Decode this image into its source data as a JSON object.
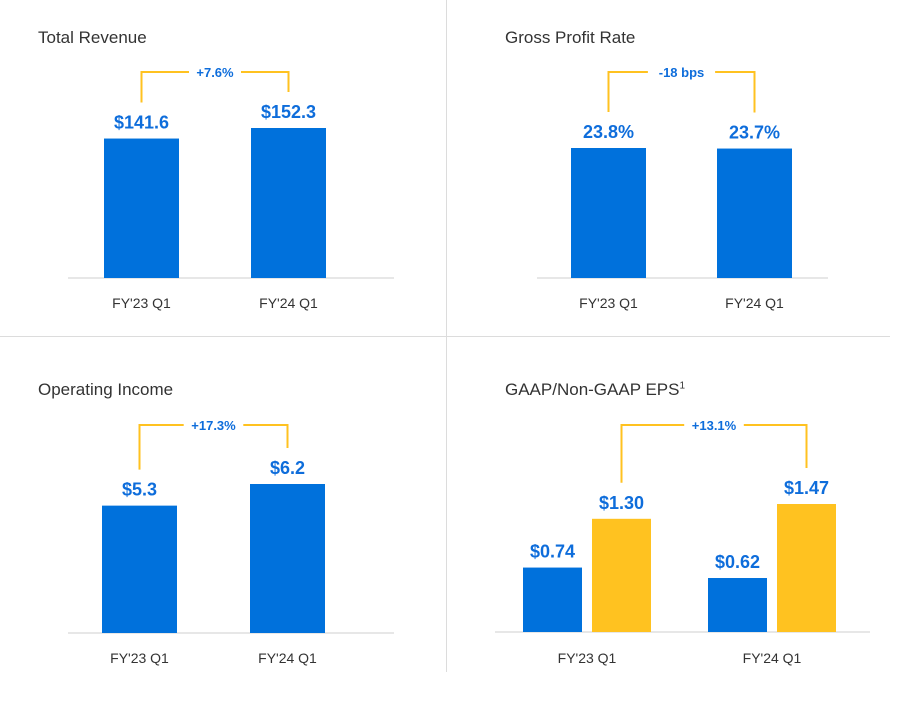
{
  "colors": {
    "blue": "#0071dc",
    "gold": "#ffc220",
    "label": "#0e6ddb",
    "bracket": "#ffc220"
  },
  "chart_data": [
    {
      "type": "bar",
      "title": "Total Revenue",
      "categories": [
        "FY'23 Q1",
        "FY'24 Q1"
      ],
      "values": [
        141.6,
        152.3
      ],
      "value_labels": [
        "$141.6",
        "$152.3"
      ],
      "annotation": "+7.6%"
    },
    {
      "type": "bar",
      "title": "Gross Profit Rate",
      "categories": [
        "FY'23 Q1",
        "FY'24 Q1"
      ],
      "values": [
        23.8,
        23.7
      ],
      "value_labels": [
        "23.8%",
        "23.7%"
      ],
      "annotation": "-18 bps"
    },
    {
      "type": "bar",
      "title": "Operating Income",
      "categories": [
        "FY'23 Q1",
        "FY'24 Q1"
      ],
      "values": [
        5.3,
        6.2
      ],
      "value_labels": [
        "$5.3",
        "$6.2"
      ],
      "annotation": "+17.3%"
    },
    {
      "type": "bar",
      "title": "GAAP/Non-GAAP EPS",
      "title_sup": "1",
      "categories": [
        "FY'23 Q1",
        "FY'24 Q1"
      ],
      "series": [
        {
          "values": [
            0.74,
            0.62
          ],
          "value_labels": [
            "$0.74",
            "$0.62"
          ]
        },
        {
          "values": [
            1.3,
            1.47
          ],
          "value_labels": [
            "$1.30",
            "$1.47"
          ]
        }
      ],
      "annotation": "+13.1%"
    }
  ]
}
